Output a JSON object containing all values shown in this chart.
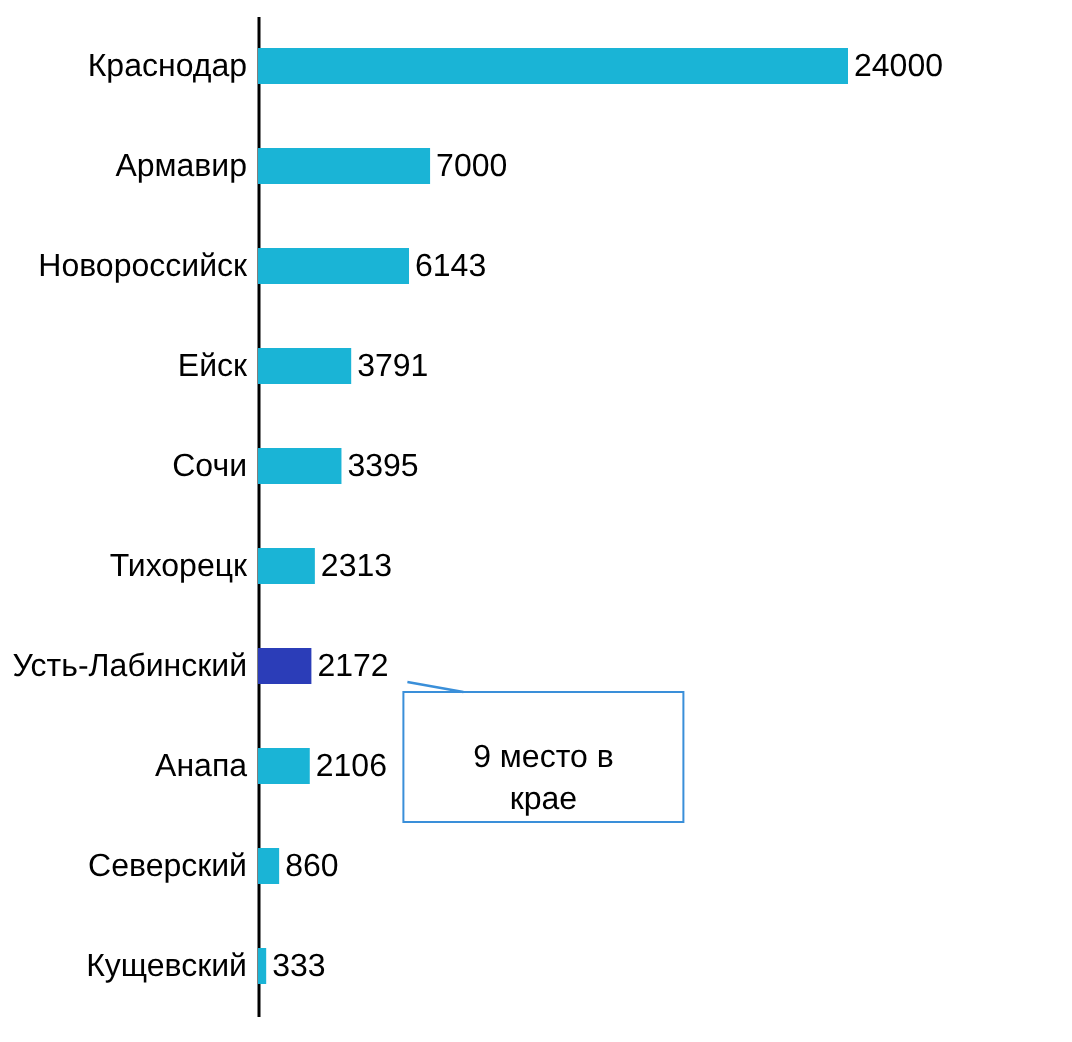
{
  "chart_data": {
    "type": "bar",
    "orientation": "horizontal",
    "categories": [
      "Краснодар",
      "Армавир",
      "Новороссийск",
      "Ейск",
      "Сочи",
      "Тихорецк",
      "Усть-Лабинский",
      "Анапа",
      "Северский",
      "Кущевский"
    ],
    "values": [
      24000,
      7000,
      6143,
      3791,
      3395,
      2313,
      2172,
      2106,
      860,
      333
    ],
    "colors": [
      "#1ab4d6",
      "#1ab4d6",
      "#1ab4d6",
      "#1ab4d6",
      "#1ab4d6",
      "#1ab4d6",
      "#2b3db8",
      "#1ab4d6",
      "#1ab4d6",
      "#1ab4d6"
    ],
    "data_labels": true,
    "annotations": [
      "9 место в крае"
    ]
  }
}
